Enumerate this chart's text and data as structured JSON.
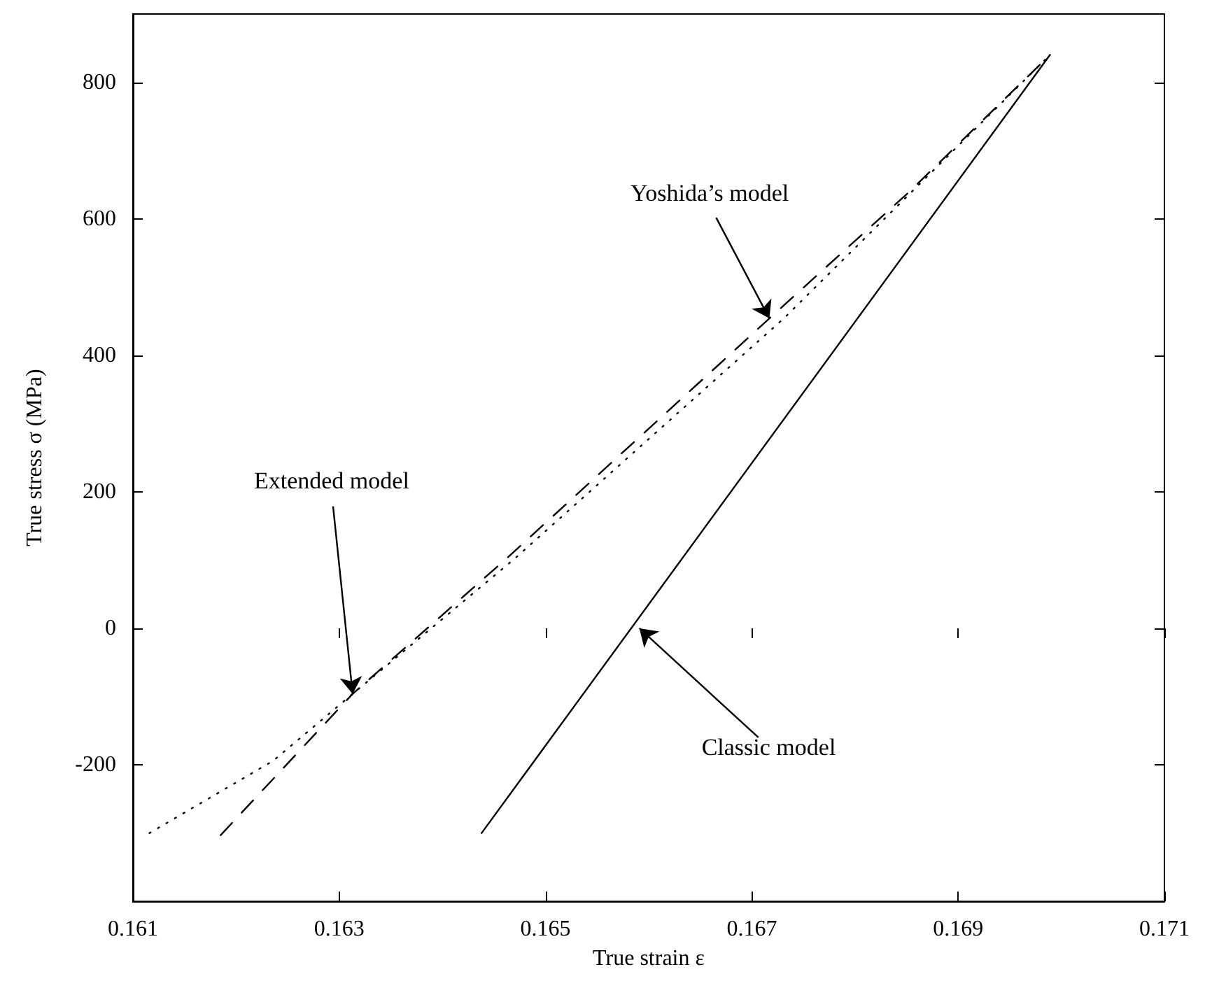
{
  "chart_data": {
    "type": "line",
    "xlabel": "True strain ε",
    "ylabel": "True stress σ (MPa)",
    "xlim": [
      0.161,
      0.171
    ],
    "xticks": [
      0.161,
      0.163,
      0.165,
      0.167,
      0.169,
      0.171
    ],
    "ylim": [
      -400,
      900
    ],
    "yticks": [
      -200,
      0,
      200,
      400,
      600,
      800
    ],
    "grid": false,
    "marker": "none",
    "series": [
      {
        "color": "#000000",
        "line_style": "solid",
        "x": [
          0.16438,
          0.16989
        ],
        "values": [
          -300,
          840
        ]
      },
      {
        "color": "#000000",
        "line_style": "dashed",
        "x": [
          0.16185,
          0.16313,
          0.16462,
          0.16717,
          0.16853,
          0.16989
        ],
        "values": [
          -303,
          -96,
          102,
          454,
          640,
          840
        ]
      },
      {
        "color": "#000000",
        "line_style": "dotted",
        "x": [
          0.16116,
          0.16236,
          0.16313,
          0.1647,
          0.16731,
          0.16989
        ],
        "values": [
          -300,
          -194,
          -96,
          102,
          454,
          840
        ]
      }
    ],
    "annotations": [
      {
        "text": "Yoshida’s model",
        "x": 0.16717,
        "y": 454
      },
      {
        "text": "Extended model",
        "x": 0.16313,
        "y": -96
      },
      {
        "text": "Classic model",
        "x": 0.16591,
        "y": 0
      }
    ]
  }
}
